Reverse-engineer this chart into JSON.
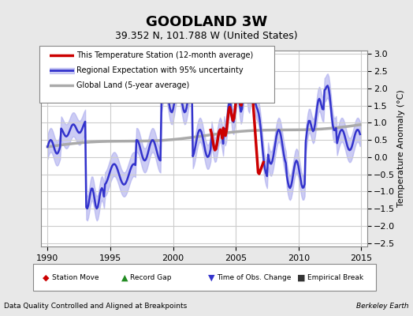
{
  "title": "GOODLAND 3W",
  "subtitle": "39.352 N, 101.788 W (United States)",
  "ylabel": "Temperature Anomaly (°C)",
  "xlabel_left": "Data Quality Controlled and Aligned at Breakpoints",
  "xlabel_right": "Berkeley Earth",
  "xlim": [
    1989.5,
    2015.5
  ],
  "ylim": [
    -2.6,
    3.1
  ],
  "yticks": [
    -2.5,
    -2,
    -1.5,
    -1,
    -0.5,
    0,
    0.5,
    1,
    1.5,
    2,
    2.5,
    3
  ],
  "xticks": [
    1990,
    1995,
    2000,
    2005,
    2010,
    2015
  ],
  "bg_color": "#e8e8e8",
  "plot_bg_color": "#ffffff",
  "grid_color": "#cccccc",
  "regional_color": "#3333cc",
  "regional_fill_color": "#aaaaee",
  "station_color": "#cc0000",
  "global_color": "#aaaaaa",
  "legend_items": [
    {
      "label": "This Temperature Station (12-month average)",
      "color": "#cc0000",
      "lw": 2.5
    },
    {
      "label": "Regional Expectation with 95% uncertainty",
      "color": "#3333cc",
      "lw": 2
    },
    {
      "label": "Global Land (5-year average)",
      "color": "#aaaaaa",
      "lw": 2.5
    }
  ],
  "marker_legend": [
    {
      "label": "Station Move",
      "color": "#cc0000",
      "marker": "D"
    },
    {
      "label": "Record Gap",
      "color": "#228B22",
      "marker": "^"
    },
    {
      "label": "Time of Obs. Change",
      "color": "#3333cc",
      "marker": "v"
    },
    {
      "label": "Empirical Break",
      "color": "#333333",
      "marker": "s"
    }
  ]
}
